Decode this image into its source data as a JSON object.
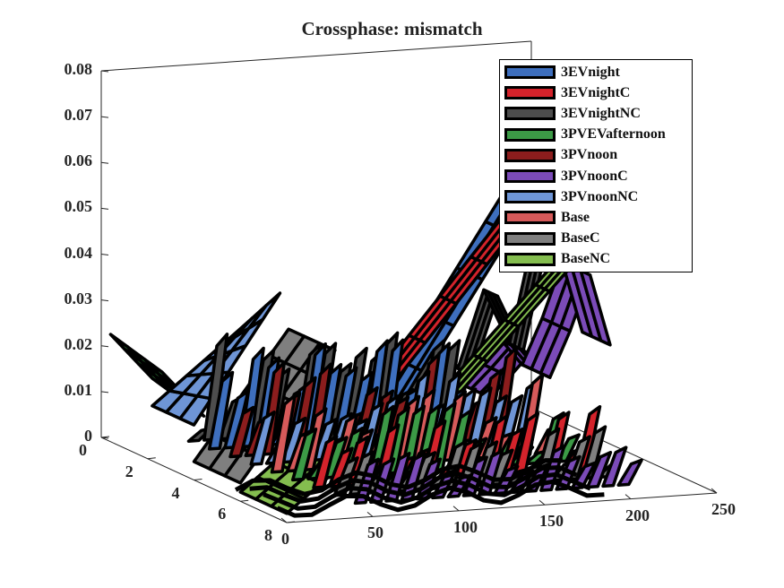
{
  "chart_data": {
    "type": "3d-surface",
    "title": "Crossphase: mismatch",
    "xlabel": "",
    "ylabel": "",
    "zlabel": "",
    "x_ticks": [
      "0",
      "50",
      "100",
      "150",
      "200",
      "250"
    ],
    "xlim": [
      0,
      250
    ],
    "y_ticks": [
      "0",
      "2",
      "4",
      "6",
      "8"
    ],
    "ylim": [
      0,
      8
    ],
    "z_ticks": [
      "0",
      "0.01",
      "0.02",
      "0.03",
      "0.04",
      "0.05",
      "0.06",
      "0.07",
      "0.08"
    ],
    "zlim": [
      0,
      0.08
    ],
    "legend_position": "top-right",
    "series": [
      {
        "name": "3EVnight",
        "color": "#3e6fbe"
      },
      {
        "name": "3EVnightC",
        "color": "#d4232b"
      },
      {
        "name": "3EVnightNC",
        "color": "#4d4d4d"
      },
      {
        "name": "3PVEVafternoon",
        "color": "#3c9a46"
      },
      {
        "name": "3PVnoon",
        "color": "#8c1d1d"
      },
      {
        "name": "3PVnoonC",
        "color": "#7b4bb8"
      },
      {
        "name": "3PVnoonNC",
        "color": "#6e95d6"
      },
      {
        "name": "Base",
        "color": "#d65a5a"
      },
      {
        "name": "BaseC",
        "color": "#7f7f7f"
      },
      {
        "name": "BaseNC",
        "color": "#84bd4f"
      }
    ]
  }
}
